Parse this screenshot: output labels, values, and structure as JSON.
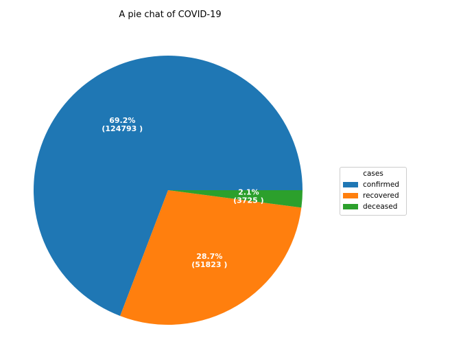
{
  "chart_data": {
    "type": "pie",
    "title": "A pie chat of COVID-19",
    "categories": [
      "confirmed",
      "recovered",
      "deceased"
    ],
    "values": [
      124793,
      51823,
      3725
    ],
    "percent_labels": [
      "69.2%",
      "28.7%",
      "2.1%"
    ],
    "value_labels": [
      "(124793 )",
      "(51823 )",
      "(3725 )"
    ],
    "colors": [
      "#1f77b4",
      "#ff7f0e",
      "#2ca02c"
    ],
    "start_angle_deg": 0,
    "direction": "counterclockwise",
    "legend": {
      "title": "cases",
      "placement": "right"
    }
  }
}
